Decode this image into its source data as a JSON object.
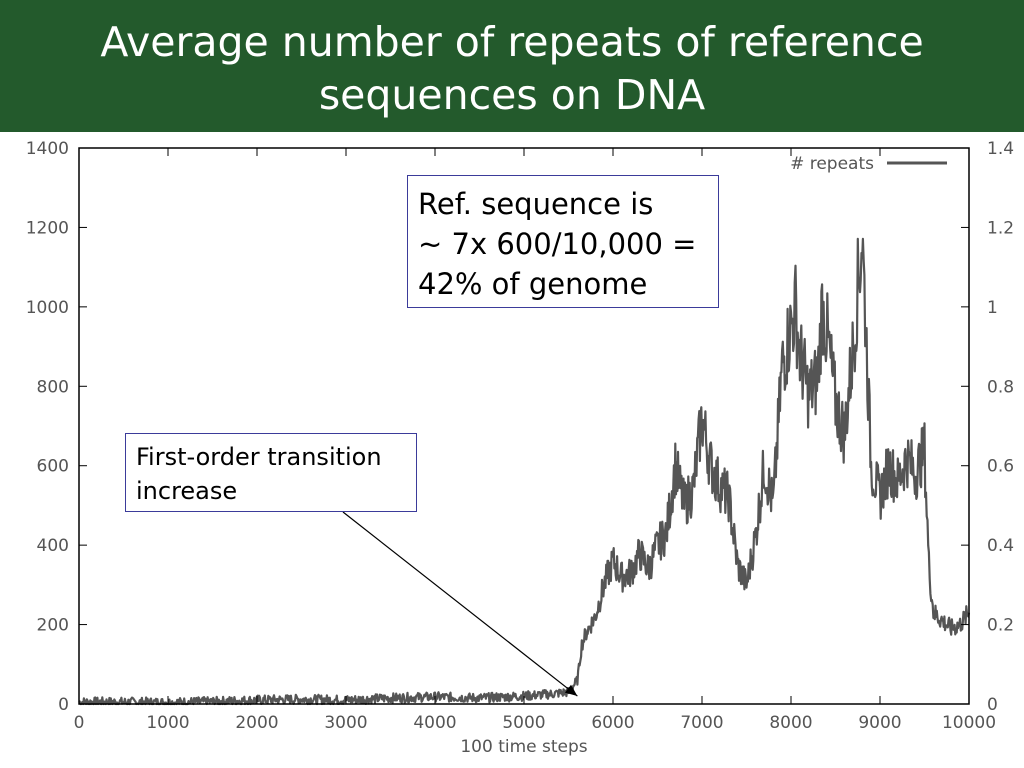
{
  "slide": {
    "title_line1": "Average number of repeats of reference",
    "title_line2": "sequences on DNA",
    "title_bg": "#235a2c"
  },
  "callouts": {
    "ref_sequence": {
      "lines": [
        "Ref. sequence is",
        "~ 7x 600/10,000 =",
        "42% of genome"
      ]
    },
    "first_order": {
      "lines": [
        "First-order transition",
        "increase"
      ]
    }
  },
  "chart_data": {
    "type": "line",
    "xlabel": "100 time steps",
    "ylabel": "",
    "xlim": [
      0,
      10000
    ],
    "ylim": [
      0,
      1400
    ],
    "xticks": [
      "0",
      "1000",
      "2000",
      "3000",
      "4000",
      "5000",
      "6000",
      "7000",
      "8000",
      "9000",
      "10000"
    ],
    "yticks": [
      "0",
      "200",
      "400",
      "600",
      "800",
      "1000",
      "1200",
      "1400"
    ],
    "y2ticks": [
      "0",
      "0.2",
      "0.4",
      "0.6",
      "0.8",
      "1",
      "1.2",
      "1.4"
    ],
    "legend": {
      "position": "top-right"
    },
    "grid": false,
    "series": [
      {
        "name": "# repeats",
        "color": "#555555",
        "x": [
          0,
          500,
          1000,
          1500,
          2000,
          2500,
          3000,
          3500,
          4000,
          4500,
          5000,
          5300,
          5500,
          5600,
          5650,
          5700,
          5800,
          5900,
          6000,
          6100,
          6200,
          6300,
          6400,
          6500,
          6600,
          6700,
          6800,
          6900,
          7000,
          7100,
          7200,
          7300,
          7400,
          7500,
          7600,
          7700,
          7800,
          7900,
          8000,
          8050,
          8100,
          8200,
          8300,
          8350,
          8400,
          8500,
          8600,
          8700,
          8750,
          8800,
          8850,
          8900,
          9000,
          9100,
          9200,
          9300,
          9400,
          9500,
          9550,
          9600,
          9700,
          9800,
          9900,
          10000
        ],
        "y": [
          5,
          5,
          4,
          6,
          10,
          12,
          10,
          15,
          18,
          15,
          20,
          25,
          30,
          60,
          150,
          180,
          220,
          300,
          360,
          320,
          330,
          380,
          340,
          400,
          430,
          600,
          500,
          540,
          720,
          600,
          550,
          520,
          350,
          300,
          420,
          600,
          500,
          850,
          950,
          1000,
          880,
          780,
          820,
          1000,
          940,
          760,
          680,
          900,
          1050,
          1180,
          900,
          600,
          520,
          600,
          560,
          620,
          580,
          640,
          350,
          230,
          210,
          190,
          200,
          230
        ]
      }
    ],
    "annotations": [
      {
        "text_ref": "callouts.first_order",
        "arrow_to": {
          "x": 5600,
          "y": 20
        }
      }
    ]
  }
}
